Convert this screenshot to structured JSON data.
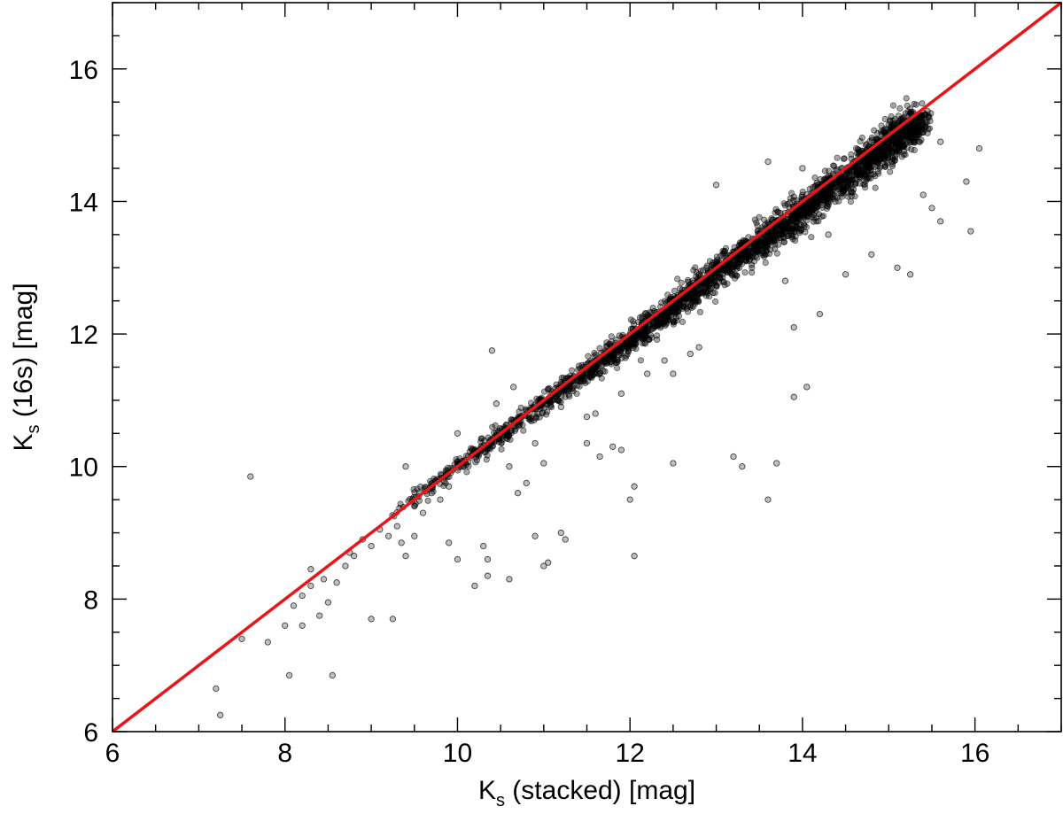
{
  "chart_data": {
    "type": "scatter",
    "title": "",
    "xlabel": {
      "main": "K",
      "sub": "s",
      "rest": " (stacked) [mag]"
    },
    "ylabel": {
      "main": "K",
      "sub": "s",
      "rest": " (16s) [mag]"
    },
    "xlim": [
      6,
      17
    ],
    "ylim": [
      6,
      17
    ],
    "x_ticks": [
      "6",
      "8",
      "10",
      "12",
      "14",
      "16"
    ],
    "y_ticks": [
      "6",
      "8",
      "10",
      "12",
      "14",
      "16"
    ],
    "x_ticks_vals": [
      6,
      8,
      10,
      12,
      14,
      16
    ],
    "y_ticks_vals": [
      6,
      8,
      10,
      12,
      14,
      16
    ],
    "grid": false,
    "reference_line": {
      "name": "",
      "color": "#e8161b",
      "x": [
        6,
        17
      ],
      "y": [
        6,
        17
      ]
    },
    "main_relation": {
      "description_free": true,
      "x": [
        9.2,
        10.0,
        11.0,
        12.0,
        13.0,
        14.0,
        15.0,
        15.4
      ],
      "y": [
        9.25,
        10.0,
        10.95,
        11.9,
        12.9,
        13.85,
        14.85,
        15.25
      ]
    },
    "points": [
      [
        7.2,
        6.65
      ],
      [
        7.25,
        6.25
      ],
      [
        7.6,
        9.85
      ],
      [
        7.5,
        7.4
      ],
      [
        7.8,
        7.35
      ],
      [
        8.05,
        6.85
      ],
      [
        8.55,
        6.85
      ],
      [
        8.0,
        7.6
      ],
      [
        8.1,
        7.9
      ],
      [
        8.2,
        7.6
      ],
      [
        8.4,
        7.75
      ],
      [
        8.5,
        7.95
      ],
      [
        8.3,
        8.2
      ],
      [
        8.45,
        8.3
      ],
      [
        8.6,
        8.25
      ],
      [
        8.2,
        8.05
      ],
      [
        8.3,
        8.45
      ],
      [
        8.7,
        8.5
      ],
      [
        8.75,
        8.7
      ],
      [
        8.8,
        8.65
      ],
      [
        8.9,
        8.9
      ],
      [
        9.0,
        8.8
      ],
      [
        9.0,
        7.7
      ],
      [
        9.25,
        7.7
      ],
      [
        9.1,
        9.05
      ],
      [
        9.2,
        8.95
      ],
      [
        9.3,
        9.1
      ],
      [
        9.35,
        8.85
      ],
      [
        9.5,
        9.4
      ],
      [
        9.6,
        9.3
      ],
      [
        9.7,
        9.6
      ],
      [
        9.8,
        9.5
      ],
      [
        9.9,
        9.7
      ],
      [
        9.4,
        8.65
      ],
      [
        9.5,
        8.95
      ],
      [
        9.9,
        8.85
      ],
      [
        10.0,
        8.6
      ],
      [
        10.2,
        8.2
      ],
      [
        10.35,
        8.35
      ],
      [
        10.6,
        8.3
      ],
      [
        10.3,
        8.8
      ],
      [
        10.35,
        8.6
      ],
      [
        10.9,
        8.95
      ],
      [
        11.05,
        8.55
      ],
      [
        11.2,
        9.0
      ],
      [
        11.25,
        8.9
      ],
      [
        11.0,
        8.5
      ],
      [
        12.05,
        8.65
      ],
      [
        12.0,
        9.5
      ],
      [
        12.05,
        9.7
      ],
      [
        11.65,
        10.15
      ],
      [
        11.9,
        10.25
      ],
      [
        11.8,
        10.3
      ],
      [
        11.5,
        10.35
      ],
      [
        10.4,
        11.75
      ],
      [
        9.4,
        10.0
      ],
      [
        10.0,
        10.5
      ],
      [
        10.45,
        10.95
      ],
      [
        10.65,
        11.2
      ],
      [
        10.7,
        9.6
      ],
      [
        10.6,
        10.0
      ],
      [
        10.9,
        10.35
      ],
      [
        11.0,
        10.05
      ],
      [
        10.8,
        9.75
      ],
      [
        11.5,
        10.75
      ],
      [
        11.6,
        10.8
      ],
      [
        11.2,
        10.9
      ],
      [
        11.9,
        11.1
      ],
      [
        12.2,
        11.4
      ],
      [
        12.4,
        11.6
      ],
      [
        12.5,
        11.4
      ],
      [
        12.5,
        10.05
      ],
      [
        12.7,
        11.7
      ],
      [
        12.8,
        11.8
      ],
      [
        13.2,
        10.15
      ],
      [
        13.3,
        10.0
      ],
      [
        13.7,
        10.05
      ],
      [
        13.6,
        9.5
      ],
      [
        13.9,
        11.05
      ],
      [
        14.05,
        11.2
      ],
      [
        13.9,
        12.1
      ],
      [
        14.2,
        12.3
      ],
      [
        14.5,
        12.9
      ],
      [
        14.8,
        13.2
      ],
      [
        15.1,
        13.0
      ],
      [
        15.25,
        12.9
      ],
      [
        15.5,
        13.9
      ],
      [
        15.6,
        13.7
      ],
      [
        15.9,
        14.3
      ],
      [
        15.95,
        13.55
      ],
      [
        16.05,
        14.8
      ],
      [
        15.6,
        14.9
      ],
      [
        15.4,
        14.1
      ],
      [
        12.6,
        12.55
      ],
      [
        12.8,
        12.9
      ],
      [
        13.1,
        13.25
      ],
      [
        13.5,
        13.5
      ],
      [
        13.0,
        14.25
      ],
      [
        14.0,
        14.5
      ],
      [
        13.6,
        14.6
      ],
      [
        14.3,
        13.5
      ],
      [
        13.8,
        12.8
      ]
    ]
  }
}
